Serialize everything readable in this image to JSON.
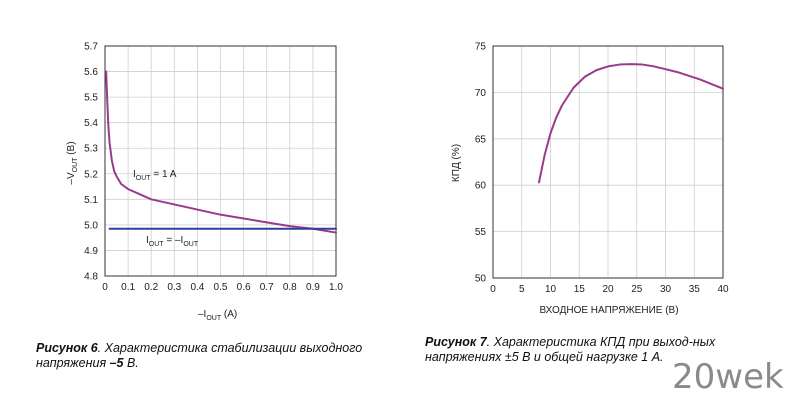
{
  "chart_data": [
    {
      "type": "line",
      "title": "",
      "xlabel": "–I_OUT (A)",
      "ylabel": "–V_OUT (B)",
      "xlim": [
        0,
        1.0
      ],
      "ylim": [
        4.8,
        5.7
      ],
      "grid": true,
      "xticks": [
        "0",
        "0.1",
        "0.2",
        "0.3",
        "0.4",
        "0.5",
        "0.6",
        "0.7",
        "0.8",
        "0.9",
        "1.0"
      ],
      "yticks": [
        "4.8",
        "4.9",
        "5.0",
        "5.1",
        "5.2",
        "5.3",
        "5.4",
        "5.5",
        "5.6",
        "5.7"
      ],
      "series": [
        {
          "name": "I_OUT = 1 A",
          "color": "#9b3a8c",
          "x": [
            0.005,
            0.01,
            0.015,
            0.02,
            0.03,
            0.04,
            0.05,
            0.07,
            0.1,
            0.15,
            0.2,
            0.3,
            0.4,
            0.5,
            0.6,
            0.7,
            0.8,
            0.9,
            1.0
          ],
          "y": [
            5.6,
            5.48,
            5.38,
            5.32,
            5.25,
            5.21,
            5.19,
            5.16,
            5.14,
            5.12,
            5.1,
            5.08,
            5.06,
            5.04,
            5.025,
            5.01,
            4.995,
            4.985,
            4.97
          ]
        },
        {
          "name": "I_OUT = –I_OUT",
          "color": "#2e3f9a",
          "x": [
            0.02,
            1.0
          ],
          "y": [
            4.985,
            4.985
          ]
        }
      ],
      "annotations": [
        {
          "label_main": "I",
          "label_sub": "OUT",
          "label_rest": " = 1 A"
        },
        {
          "label_main": "I",
          "label_sub": "OUT",
          "label_rest": " = –I",
          "label_sub2": "OUT"
        }
      ]
    },
    {
      "type": "line",
      "title": "",
      "xlabel": "ВХОДНОЕ НАПРЯЖЕНИЕ (В)",
      "ylabel": "КПД (%)",
      "xlim": [
        0,
        40
      ],
      "ylim": [
        50,
        75
      ],
      "grid": true,
      "xticks": [
        "0",
        "5",
        "10",
        "15",
        "20",
        "25",
        "30",
        "35",
        "40"
      ],
      "yticks": [
        "50",
        "55",
        "60",
        "65",
        "70",
        "75"
      ],
      "series": [
        {
          "name": "КПД",
          "color": "#9b3a8c",
          "x": [
            8,
            9,
            10,
            11,
            12,
            14,
            16,
            18,
            20,
            22,
            24,
            26,
            28,
            30,
            32,
            34,
            36,
            38,
            40
          ],
          "y": [
            60.3,
            63.3,
            65.6,
            67.3,
            68.6,
            70.5,
            71.7,
            72.4,
            72.8,
            73.0,
            73.05,
            73.0,
            72.8,
            72.5,
            72.2,
            71.8,
            71.4,
            70.9,
            70.4
          ]
        }
      ]
    }
  ],
  "captions": {
    "fig6_bold": "Рисунок 6",
    "fig6_text": ". Характеристика стабилизации выходного напряжения ",
    "fig6_bold_value": "–5",
    "fig6_tail": " В.",
    "fig7_bold": "Рисунок 7",
    "fig7_text": ". Характеристика КПД при выход-ных напряжениях ±5 В и общей нагрузке 1 А."
  },
  "watermark": "20wek",
  "colors": {
    "curve": "#9b3a8c",
    "reference": "#2e3f9a",
    "grid": "#cfcfcf",
    "axis": "#333333"
  }
}
